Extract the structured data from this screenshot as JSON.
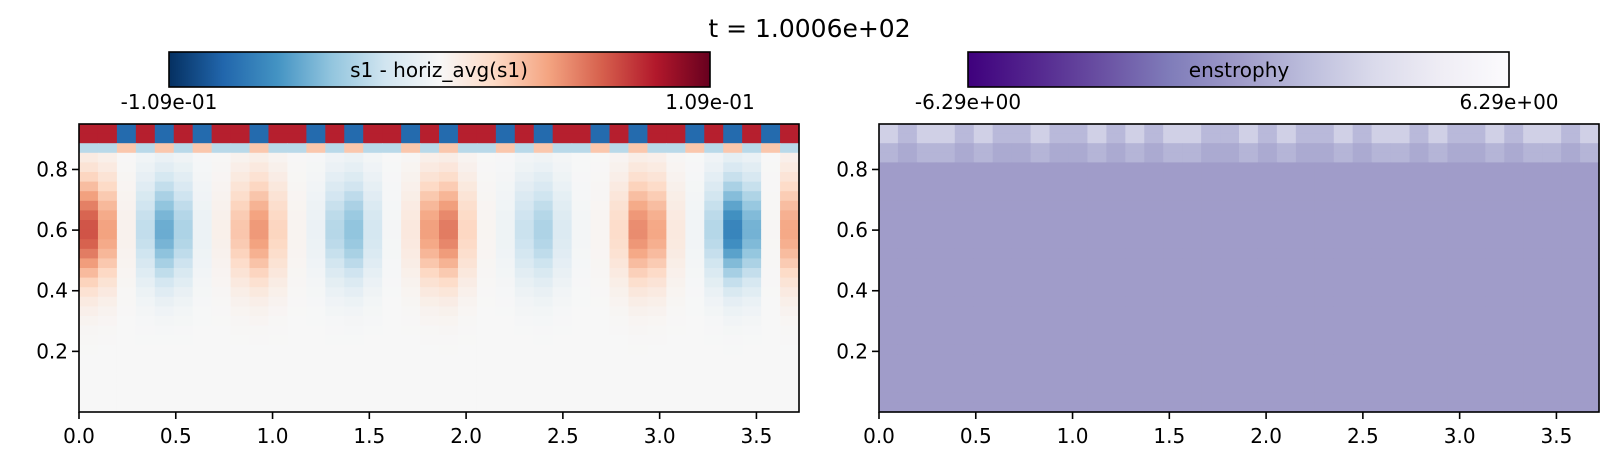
{
  "suptitle": "t = 1.0006e+02",
  "chart_data": [
    {
      "type": "heatmap",
      "field": "s1_perturbation",
      "colorbar": {
        "label": "s1 - horiz_avg(s1)",
        "min_label": "-1.09e-01",
        "max_label": "1.09e-01",
        "vmin": -0.109,
        "vmax": 0.109,
        "colormap": "RdBu_r",
        "stops": [
          "#053061",
          "#2166ac",
          "#4393c3",
          "#92c5de",
          "#d1e5f0",
          "#f7f7f7",
          "#fddbc7",
          "#f4a582",
          "#d6604d",
          "#b2182b",
          "#67001f"
        ]
      },
      "xlim": [
        0,
        3.72
      ],
      "ylim": [
        0,
        0.95
      ],
      "xticks": [
        "0.0",
        "0.5",
        "1.0",
        "1.5",
        "2.0",
        "2.5",
        "3.0",
        "3.5"
      ],
      "xtick_values": [
        0,
        0.5,
        1.0,
        1.5,
        2.0,
        2.5,
        3.0,
        3.5
      ],
      "yticks": [
        "0.2",
        "0.4",
        "0.6",
        "0.8"
      ],
      "ytick_values": [
        0.2,
        0.4,
        0.6,
        0.8
      ],
      "grid": false,
      "rolls": [
        {
          "x": 0.06,
          "a": 0.07
        },
        {
          "x": 0.45,
          "a": -0.055
        },
        {
          "x": 0.92,
          "a": 0.048
        },
        {
          "x": 1.4,
          "a": -0.045
        },
        {
          "x": 1.88,
          "a": 0.06
        },
        {
          "x": 2.38,
          "a": -0.035
        },
        {
          "x": 2.92,
          "a": 0.055
        },
        {
          "x": 3.4,
          "a": -0.075
        },
        {
          "x": 3.72,
          "a": 0.05
        }
      ],
      "top_row_signs": [
        1,
        1,
        -1,
        1,
        -1,
        1,
        -1,
        1,
        1,
        -1,
        1,
        1,
        -1,
        1,
        -1,
        1,
        1,
        -1,
        1,
        -1,
        1,
        1,
        -1,
        1,
        -1,
        1,
        1,
        -1,
        1,
        -1,
        1,
        1,
        -1,
        1,
        -1,
        1,
        -1,
        1
      ]
    },
    {
      "type": "heatmap",
      "field": "enstrophy",
      "colorbar": {
        "label": "enstrophy",
        "min_label": "-6.29e+00",
        "max_label": "6.29e+00",
        "vmin": -6.29,
        "vmax": 6.29,
        "colormap": "Purples_r",
        "stops": [
          "#3f007d",
          "#54278f",
          "#6a51a3",
          "#807dba",
          "#9e9ac8",
          "#bcbddc",
          "#dadaeb",
          "#efedf5",
          "#fcfbfd"
        ]
      },
      "xlim": [
        0,
        3.72
      ],
      "ylim": [
        0,
        0.95
      ],
      "xticks": [
        "0.0",
        "0.5",
        "1.0",
        "1.5",
        "2.0",
        "2.5",
        "3.0",
        "3.5"
      ],
      "xtick_values": [
        0,
        0.5,
        1.0,
        1.5,
        2.0,
        2.5,
        3.0,
        3.5
      ],
      "yticks": [
        "0.2",
        "0.4",
        "0.6",
        "0.8"
      ],
      "ytick_values": [
        0.2,
        0.4,
        0.6,
        0.8
      ],
      "grid": false,
      "background_value": 0.1,
      "top_row_peaks": [
        1,
        0,
        1,
        1,
        0,
        1,
        0,
        0,
        1,
        0,
        0,
        1,
        0,
        1,
        0,
        1,
        1,
        0,
        0,
        1,
        0,
        1,
        0,
        0,
        1,
        0,
        1,
        1,
        0,
        1,
        0,
        0,
        1,
        0,
        1,
        1,
        0,
        1
      ]
    }
  ]
}
